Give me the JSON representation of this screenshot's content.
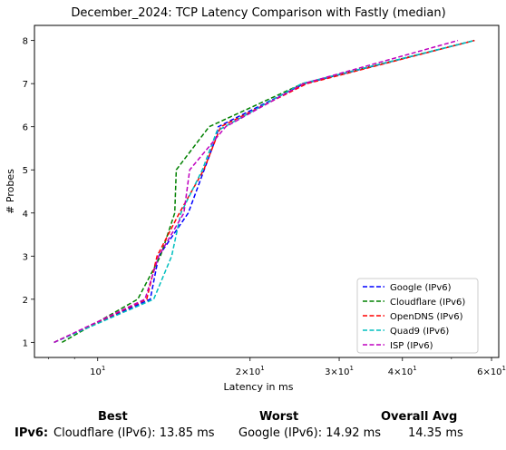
{
  "chart_data": {
    "type": "line",
    "title": "December_2024: TCP Latency Comparison with Fastly (median)",
    "xlabel": "Latency in ms",
    "ylabel": "# Probes",
    "xscale": "log",
    "xlim": [
      7.5,
      62
    ],
    "ylim": [
      0.65,
      8.35
    ],
    "x_ticks": [
      {
        "value": 10,
        "base": "10",
        "exp": "1",
        "coef": ""
      },
      {
        "value": 20,
        "base": "10",
        "exp": "1",
        "coef": "2×"
      },
      {
        "value": 30,
        "base": "10",
        "exp": "1",
        "coef": "3×"
      },
      {
        "value": 40,
        "base": "10",
        "exp": "1",
        "coef": "4×"
      },
      {
        "value": 60,
        "base": "10",
        "exp": "1",
        "coef": "6×"
      }
    ],
    "y_ticks": [
      "1",
      "2",
      "3",
      "4",
      "5",
      "6",
      "7",
      "8"
    ],
    "grid": false,
    "legend_position": "lower-right",
    "series": [
      {
        "name": "Google (IPv6)",
        "color": "#0000ff",
        "x": [
          8.2,
          12.7,
          13.2,
          15.1,
          17.2,
          17.3,
          25.6,
          55.5
        ],
        "y": [
          1,
          2,
          3,
          4,
          5.8,
          6,
          7,
          8
        ]
      },
      {
        "name": "Cloudflare (IPv6)",
        "color": "#008000",
        "x": [
          8.5,
          12.0,
          13.3,
          14.2,
          14.3,
          16.6,
          25.4,
          55.5
        ],
        "y": [
          1,
          2,
          3,
          4,
          5,
          6,
          7,
          8
        ]
      },
      {
        "name": "OpenDNS (IPv6)",
        "color": "#ff0000",
        "x": [
          8.2,
          12.5,
          13.1,
          14.5,
          16.2,
          17.5,
          25.9,
          55.5
        ],
        "y": [
          1,
          2,
          3,
          4,
          5,
          6,
          7,
          8
        ]
      },
      {
        "name": "Quad9 (IPv6)",
        "color": "#00bfbf",
        "x": [
          8.2,
          12.9,
          14.0,
          14.6,
          16.1,
          17.2,
          25.3,
          55.5
        ],
        "y": [
          1,
          2,
          3,
          4,
          5,
          5.9,
          7,
          8
        ]
      },
      {
        "name": "ISP (IPv6)",
        "color": "#bf00bf",
        "x": [
          8.2,
          12.4,
          13.2,
          14.8,
          15.2,
          17.9,
          25.5,
          51.5
        ],
        "y": [
          1,
          2,
          3,
          4,
          5,
          6,
          7,
          8
        ]
      }
    ]
  },
  "summary": {
    "best_header": "Best",
    "worst_header": "Worst",
    "avg_header": "Overall Avg",
    "row_label": "IPv6:",
    "best_value": "Cloudflare (IPv6): 13.85 ms",
    "worst_value": "Google (IPv6): 14.92 ms",
    "avg_value": "14.35 ms"
  }
}
